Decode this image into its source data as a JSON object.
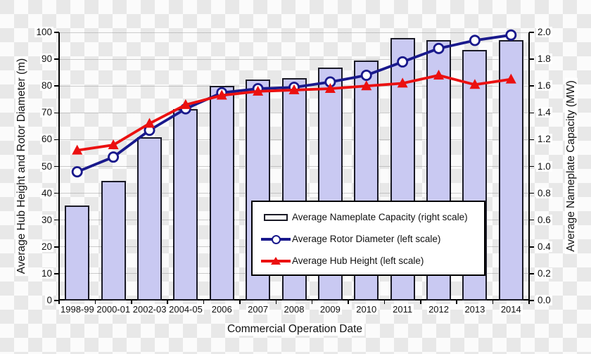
{
  "chart_data": {
    "type": "bar",
    "subtype": "combo-bar-lines",
    "title": "",
    "categories": [
      "1998-99",
      "2000-01",
      "2002-03",
      "2004-05",
      "2006",
      "2007",
      "2008",
      "2009",
      "2010",
      "2011",
      "2012",
      "2013",
      "2014"
    ],
    "series": [
      {
        "name": "Average Nameplate Capacity (right scale)",
        "type": "bar",
        "axis": "right",
        "values": [
          0.71,
          0.89,
          1.22,
          1.43,
          1.6,
          1.65,
          1.66,
          1.74,
          1.79,
          1.96,
          1.94,
          1.87,
          1.94
        ],
        "fill": "#c9c9f2",
        "border": "#1a1a26"
      },
      {
        "name": "Average Rotor Diameter (left scale)",
        "type": "line",
        "axis": "left",
        "marker": "circle",
        "values": [
          48,
          53.5,
          63.5,
          71.5,
          77.5,
          79,
          79.5,
          81.5,
          84,
          89,
          94,
          97,
          99
        ],
        "color": "#19198c",
        "marker_fill": "#ffffff"
      },
      {
        "name": "Average Hub Height (left scale)",
        "type": "line",
        "axis": "left",
        "marker": "triangle",
        "values": [
          56,
          58,
          66,
          73,
          76.5,
          78,
          78.5,
          79,
          80,
          81,
          84,
          80.5,
          82.5
        ],
        "color": "#eb1010",
        "marker_fill": "#eb1010"
      }
    ],
    "left_axis": {
      "title": "Average Hub Height and Rotor Diameter (m)",
      "min": 0,
      "max": 100,
      "step": 10,
      "ticks": [
        "0",
        "10",
        "20",
        "30",
        "40",
        "50",
        "60",
        "70",
        "80",
        "90",
        "100"
      ]
    },
    "right_axis": {
      "title": "Average Nameplate Capacity (MW)",
      "min": 0,
      "max": 2,
      "step": 0.2,
      "ticks": [
        "0.0",
        "0.2",
        "0.4",
        "0.6",
        "0.8",
        "1.0",
        "1.2",
        "1.4",
        "1.6",
        "1.8",
        "2.0"
      ]
    },
    "x_axis": {
      "title": "Commercial Operation Date"
    },
    "legend": {
      "position": "inside-lower-center",
      "border": "#000000",
      "background": "#ffffff"
    },
    "grid": "horizontal-dotted",
    "plot_background": "transparent-checker"
  }
}
